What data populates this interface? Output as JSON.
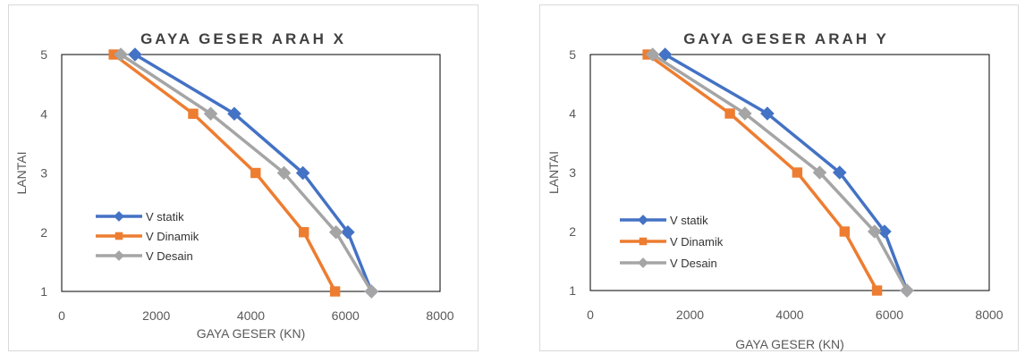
{
  "chart_data": [
    {
      "type": "line",
      "title": "GAYA GESER ARAH X",
      "xlabel": "GAYA GESER (KN)",
      "ylabel": "LANTAI",
      "xlim": [
        0,
        8000
      ],
      "ylim": [
        1,
        5
      ],
      "xticks": [
        "0",
        "2000",
        "4000",
        "6000",
        "8000"
      ],
      "yticks": [
        "1",
        "2",
        "3",
        "4",
        "5"
      ],
      "legend": "left-lower",
      "grid": false,
      "series": [
        {
          "name": "V statik",
          "color": "#4472C4",
          "marker": "diamond",
          "x": [
            6550,
            6050,
            5100,
            3650,
            1550
          ],
          "y": [
            1,
            2,
            3,
            4,
            5
          ]
        },
        {
          "name": "V Dinamik",
          "color": "#ED7D31",
          "marker": "square",
          "x": [
            5780,
            5120,
            4100,
            2780,
            1100
          ],
          "y": [
            1,
            2,
            3,
            4,
            5
          ]
        },
        {
          "name": "V Desain",
          "color": "#A5A5A5",
          "marker": "diamond",
          "x": [
            6550,
            5800,
            4700,
            3150,
            1250
          ],
          "y": [
            1,
            2,
            3,
            4,
            5
          ]
        }
      ]
    },
    {
      "type": "line",
      "title": "GAYA GESER ARAH Y",
      "xlabel": "GAYA GESER (KN)",
      "ylabel": "LANTAI",
      "xlim": [
        0,
        8000
      ],
      "ylim": [
        1,
        5
      ],
      "xticks": [
        "0",
        "2000",
        "4000",
        "6000",
        "8000"
      ],
      "yticks": [
        "1",
        "2",
        "3",
        "4",
        "5"
      ],
      "legend": "left-lower",
      "grid": false,
      "series": [
        {
          "name": "V statik",
          "color": "#4472C4",
          "marker": "diamond",
          "x": [
            6350,
            5900,
            5000,
            3550,
            1500
          ],
          "y": [
            1,
            2,
            3,
            4,
            5
          ]
        },
        {
          "name": "V Dinamik",
          "color": "#ED7D31",
          "marker": "square",
          "x": [
            5750,
            5100,
            4150,
            2800,
            1150
          ],
          "y": [
            1,
            2,
            3,
            4,
            5
          ]
        },
        {
          "name": "V Desain",
          "color": "#A5A5A5",
          "marker": "diamond",
          "x": [
            6350,
            5700,
            4600,
            3100,
            1250
          ],
          "y": [
            1,
            2,
            3,
            4,
            5
          ]
        }
      ]
    }
  ]
}
